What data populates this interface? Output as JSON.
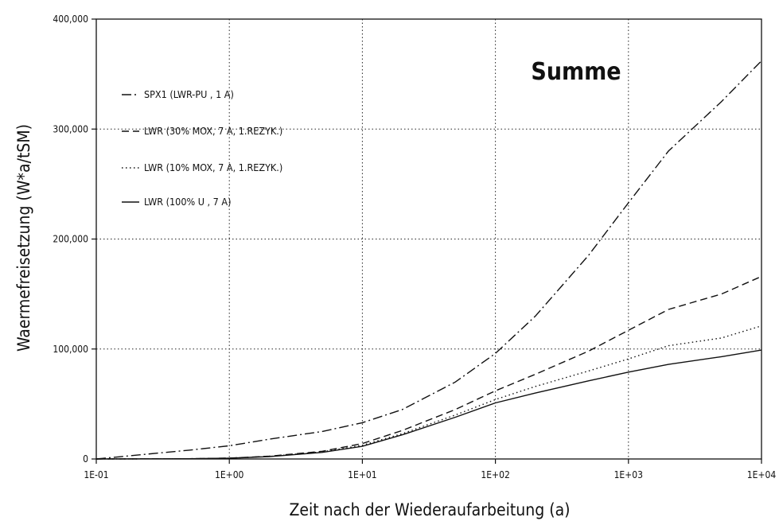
{
  "chart_data": {
    "type": "line",
    "title": "",
    "annotation": "Summe",
    "xlabel": "Zeit nach der Wiederaufarbeitung (a)",
    "ylabel": "Waermefreisetzung (W*a/tSM)",
    "x_scale": "log",
    "xlim": [
      0.1,
      10000
    ],
    "ylim": [
      0,
      400000
    ],
    "xtick_labels": [
      "1E-01",
      "1E+00",
      "1E+01",
      "1E+02",
      "1E+03",
      "1E+04"
    ],
    "xtick_values": [
      0.1,
      1,
      10,
      100,
      1000,
      10000
    ],
    "ytick_labels": [
      "0",
      "100,000",
      "200,000",
      "300,000",
      "400,000"
    ],
    "ytick_values": [
      0,
      100000,
      200000,
      300000,
      400000
    ],
    "grid": true,
    "legend_position": "upper-left",
    "series": [
      {
        "name": "SPX1 (LWR-PU , 1 A)",
        "style": "dashdot",
        "x": [
          0.1,
          0.2,
          0.5,
          1,
          2,
          5,
          10,
          20,
          50,
          100,
          200,
          500,
          1000,
          2000,
          5000,
          10000
        ],
        "y": [
          0,
          3500,
          8000,
          12000,
          18000,
          25000,
          33000,
          45000,
          70000,
          96000,
          130000,
          185000,
          233000,
          280000,
          325000,
          362000
        ]
      },
      {
        "name": "LWR (30% MOX, 7 A, 1.REZYK.)",
        "style": "dashed",
        "x": [
          0.1,
          0.5,
          1,
          2,
          5,
          10,
          20,
          50,
          100,
          200,
          500,
          1000,
          2000,
          5000,
          10000
        ],
        "y": [
          0,
          200,
          800,
          2500,
          7000,
          14000,
          26000,
          45000,
          62000,
          77000,
          98000,
          117000,
          136000,
          150000,
          166000
        ]
      },
      {
        "name": "LWR (10% MOX, 7 A, 1.REZYK.)",
        "style": "dotted",
        "x": [
          0.1,
          0.5,
          1,
          2,
          5,
          10,
          20,
          50,
          100,
          200,
          500,
          1000,
          2000,
          5000,
          10000
        ],
        "y": [
          0,
          200,
          700,
          2300,
          6500,
          12500,
          23000,
          40000,
          54000,
          66000,
          80000,
          91000,
          103000,
          110000,
          121000
        ]
      },
      {
        "name": "LWR (100% U , 7 A)",
        "style": "solid",
        "x": [
          0.1,
          0.5,
          1,
          2,
          5,
          10,
          20,
          50,
          100,
          200,
          500,
          1000,
          2000,
          5000,
          10000
        ],
        "y": [
          0,
          200,
          700,
          2200,
          6000,
          11500,
          22000,
          38000,
          51000,
          60000,
          71000,
          79000,
          86000,
          93000,
          99000
        ]
      }
    ]
  }
}
